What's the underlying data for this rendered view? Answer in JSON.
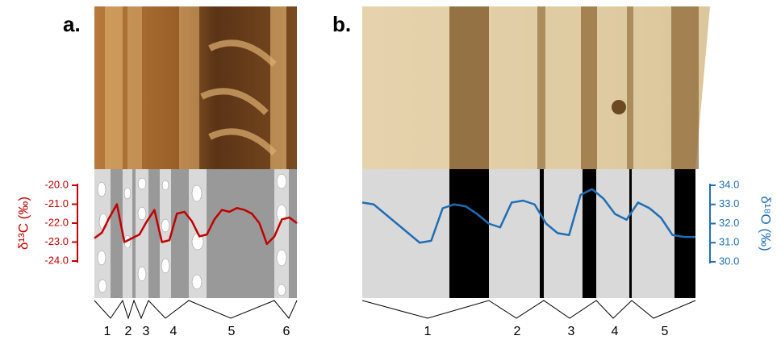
{
  "chart_data": [
    {
      "type": "line",
      "panel_label": "a.",
      "ylabel": "δ¹³C (‰)",
      "color": "#c00000",
      "ylim": [
        -24,
        -20
      ],
      "yticks": [
        {
          "value": -20,
          "label": "-20.0"
        },
        {
          "value": -21,
          "label": "-21.0"
        },
        {
          "value": -22,
          "label": "-22.0"
        },
        {
          "value": -23,
          "label": "-23.0"
        },
        {
          "value": -24,
          "label": "-24.0"
        }
      ],
      "values": [
        -22.8,
        -22.5,
        -21.7,
        -21.0,
        -23.0,
        -22.8,
        -22.6,
        -21.9,
        -21.3,
        -23.0,
        -22.9,
        -21.5,
        -21.4,
        -21.9,
        -22.7,
        -22.6,
        -21.8,
        -21.3,
        -21.4,
        -21.2,
        -21.3,
        -21.5,
        -22.0,
        -23.1,
        -22.7,
        -21.8,
        -21.7,
        -22.0
      ],
      "ring_labels": [
        "1",
        "2",
        "3",
        "4",
        "5",
        "6"
      ]
    },
    {
      "type": "line",
      "panel_label": "b.",
      "ylabel": "δ¹⁸O (‰)",
      "color": "#1f6eb5",
      "ylim": [
        30,
        34
      ],
      "yticks": [
        {
          "value": 30,
          "label": "30.0"
        },
        {
          "value": 31,
          "label": "31.0"
        },
        {
          "value": 32,
          "label": "32.0"
        },
        {
          "value": 33,
          "label": "33.0"
        },
        {
          "value": 34,
          "label": "34.0"
        }
      ],
      "values": [
        33.1,
        33.0,
        32.5,
        32.0,
        31.5,
        31.0,
        31.1,
        32.8,
        33.0,
        32.9,
        32.5,
        32.0,
        31.8,
        33.1,
        33.2,
        33.0,
        32.0,
        31.5,
        31.4,
        33.5,
        33.8,
        33.3,
        32.5,
        32.2,
        33.1,
        32.8,
        32.3,
        31.4,
        31.3,
        31.3
      ],
      "ring_labels": [
        "1",
        "2",
        "3",
        "4",
        "5"
      ]
    }
  ]
}
